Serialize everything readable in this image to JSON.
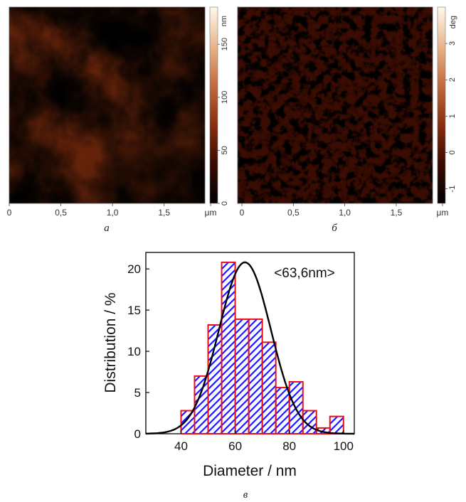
{
  "figure": {
    "panel_a": {
      "letter": "а",
      "x_ticks": [
        "0",
        "0,5",
        "1,0",
        "1,5",
        "μm"
      ],
      "colorbar_unit": "nm",
      "colorbar_ticks": [
        "0",
        "50",
        "100",
        "150"
      ],
      "colorbar_range": [
        0,
        185
      ]
    },
    "panel_b": {
      "letter": "б",
      "x_ticks": [
        "0",
        "0,5",
        "1,0",
        "1,5",
        "μm"
      ],
      "colorbar_unit": "deg",
      "colorbar_ticks": [
        "-1",
        "0",
        "1",
        "2",
        "3"
      ],
      "colorbar_range": [
        -1.4,
        4.0
      ]
    },
    "panel_c": {
      "letter": "в"
    },
    "colormap": [
      "#000000",
      "#3a0a00",
      "#8a2d0c",
      "#c46a3c",
      "#e9b58b",
      "#fff8ee"
    ]
  },
  "chart_data": {
    "type": "bar",
    "subtype": "histogram-with-gaussian-fit",
    "xlabel": "Diameter / nm",
    "ylabel": "Distribution / %",
    "xlim": [
      27,
      104
    ],
    "ylim": [
      0,
      22
    ],
    "x_ticks": [
      "40",
      "60",
      "80",
      "100"
    ],
    "y_ticks": [
      "0",
      "5",
      "10",
      "15",
      "20"
    ],
    "annotation": "<63,6nm>",
    "bin_width": 5,
    "bins": [
      {
        "start": 40,
        "value": 2.8
      },
      {
        "start": 45,
        "value": 7.0
      },
      {
        "start": 50,
        "value": 13.2
      },
      {
        "start": 55,
        "value": 20.8
      },
      {
        "start": 60,
        "value": 13.9
      },
      {
        "start": 65,
        "value": 13.9
      },
      {
        "start": 70,
        "value": 11.1
      },
      {
        "start": 75,
        "value": 5.6
      },
      {
        "start": 80,
        "value": 6.3
      },
      {
        "start": 85,
        "value": 2.8
      },
      {
        "start": 90,
        "value": 0.7
      },
      {
        "start": 95,
        "value": 2.1
      }
    ],
    "fit": {
      "mean": 63.6,
      "sigma": 9.6,
      "peak": 20.8
    },
    "bar_edge_color": "#e8101a",
    "hatch_color": "#1a1aff",
    "fit_color": "#000000"
  }
}
